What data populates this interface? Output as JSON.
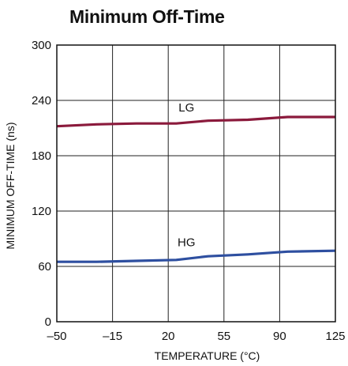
{
  "chart_data": {
    "type": "line",
    "title": "Minimum Off-Time",
    "xlabel": "TEMPERATURE (°C)",
    "ylabel": "MINIMUM OFF-TIME (ns)",
    "xlim": [
      -50,
      125
    ],
    "ylim": [
      0,
      300
    ],
    "xticks": [
      -50,
      -15,
      20,
      55,
      90,
      125
    ],
    "xtick_labels": [
      "–50",
      "–15",
      "20",
      "55",
      "90",
      "125"
    ],
    "yticks": [
      0,
      60,
      120,
      180,
      240,
      300
    ],
    "ytick_labels": [
      "0",
      "60",
      "120",
      "180",
      "240",
      "300"
    ],
    "grid": true,
    "x": [
      -50,
      -25,
      0,
      25,
      45,
      70,
      95,
      125
    ],
    "series": [
      {
        "name": "LG",
        "color": "#8b1a3c",
        "values": [
          212,
          214,
          215,
          215,
          218,
          219,
          222,
          222
        ]
      },
      {
        "name": "HG",
        "color": "#2e4fa0",
        "values": [
          65,
          65,
          66,
          67,
          71,
          73,
          76,
          77
        ]
      }
    ],
    "annotations": [
      {
        "text": "LG",
        "x": 25,
        "y": 228
      },
      {
        "text": "HG",
        "x": 25,
        "y": 82
      }
    ]
  }
}
